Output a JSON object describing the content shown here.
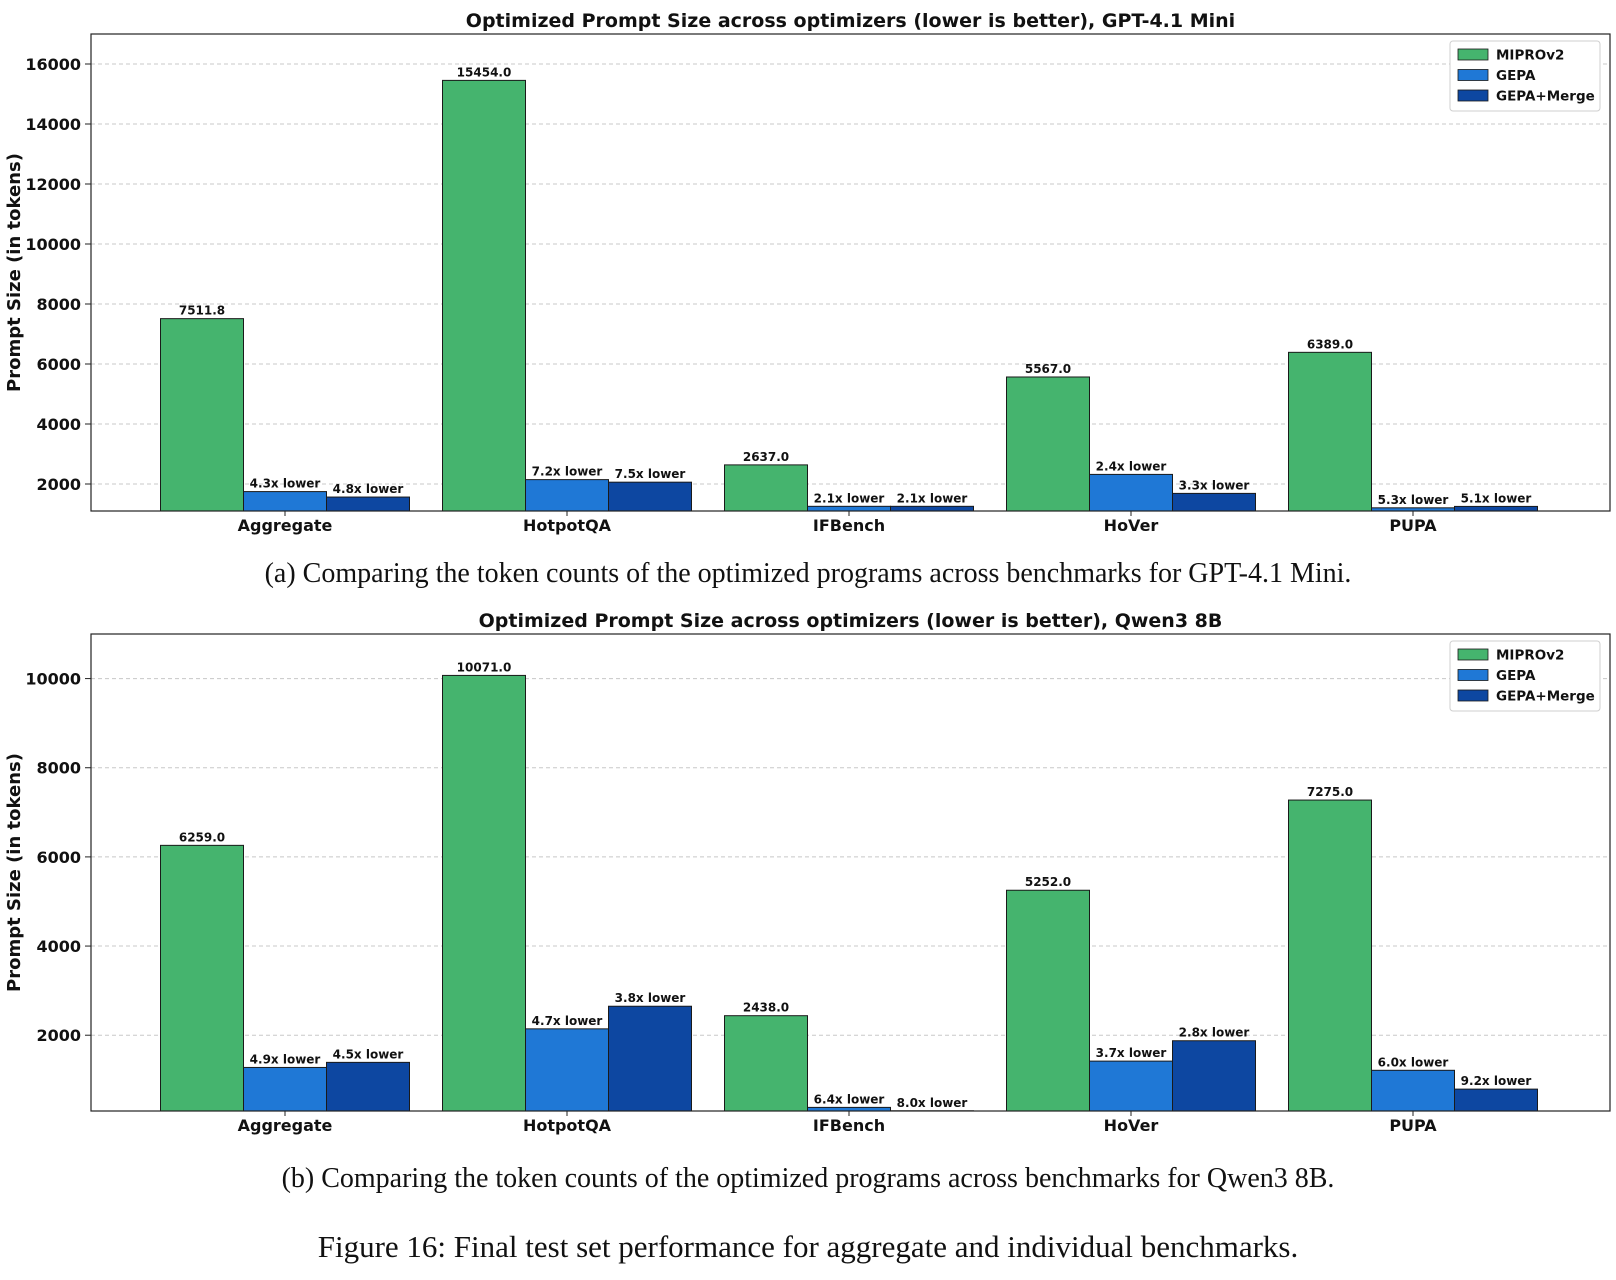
{
  "colors": {
    "MIPROv2": "#45b46e",
    "GEPA": "#1f78d6",
    "GEPA+Merge": "#0d47a1"
  },
  "captions": {
    "a": "(a) Comparing the token counts of the optimized programs across benchmarks for GPT-4.1 Mini.",
    "b": "(b) Comparing the token counts of the optimized programs across benchmarks for Qwen3 8B.",
    "figure": "Figure 16: Final test set performance for aggregate and individual benchmarks."
  },
  "chart_data": [
    {
      "type": "bar",
      "title": "Optimized Prompt Size across optimizers (lower is better), GPT-4.1 Mini",
      "xlabel": "",
      "ylabel": "Prompt Size (in tokens)",
      "ylim": [
        1100,
        17000
      ],
      "yticks": [
        2000,
        4000,
        6000,
        8000,
        10000,
        12000,
        14000,
        16000
      ],
      "grid": true,
      "legend_position": "top-right",
      "categories": [
        "Aggregate",
        "HotpotQA",
        "IFBench",
        "HoVer",
        "PUPA"
      ],
      "series": [
        {
          "name": "MIPROv2",
          "values": [
            7511.8,
            15454.0,
            2637.0,
            5567.0,
            6389.0
          ],
          "labels": [
            "7511.8",
            "15454.0",
            "2637.0",
            "5567.0",
            "6389.0"
          ]
        },
        {
          "name": "GEPA",
          "values": [
            1747,
            2146,
            1256,
            2320,
            1206
          ],
          "labels": [
            "4.3x lower",
            "7.2x lower",
            "2.1x lower",
            "2.4x lower",
            "5.3x lower"
          ]
        },
        {
          "name": "GEPA+Merge",
          "values": [
            1565,
            2061,
            1256,
            1687,
            1253
          ],
          "labels": [
            "4.8x lower",
            "7.5x lower",
            "2.1x lower",
            "3.3x lower",
            "5.1x lower"
          ]
        }
      ]
    },
    {
      "type": "bar",
      "title": "Optimized Prompt Size across optimizers (lower is better), Qwen3 8B",
      "xlabel": "",
      "ylabel": "Prompt Size (in tokens)",
      "ylim": [
        300,
        11000
      ],
      "yticks": [
        2000,
        4000,
        6000,
        8000,
        10000
      ],
      "grid": true,
      "legend_position": "top-right",
      "categories": [
        "Aggregate",
        "HotpotQA",
        "IFBench",
        "HoVer",
        "PUPA"
      ],
      "series": [
        {
          "name": "MIPROv2",
          "values": [
            6259.0,
            10071.0,
            2438.0,
            5252.0,
            7275.0
          ],
          "labels": [
            "6259.0",
            "10071.0",
            "2438.0",
            "5252.0",
            "7275.0"
          ]
        },
        {
          "name": "GEPA",
          "values": [
            1277,
            2143,
            381,
            1419,
            1213
          ],
          "labels": [
            "4.9x lower",
            "4.7x lower",
            "6.4x lower",
            "3.7x lower",
            "6.0x lower"
          ]
        },
        {
          "name": "GEPA+Merge",
          "values": [
            1391,
            2650,
            305,
            1876,
            791
          ],
          "labels": [
            "4.5x lower",
            "3.8x lower",
            "8.0x lower",
            "2.8x lower",
            "9.2x lower"
          ]
        }
      ]
    }
  ]
}
